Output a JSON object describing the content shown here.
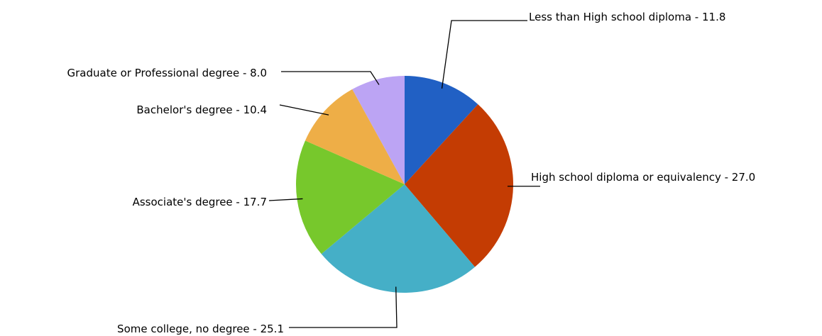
{
  "chart_data": {
    "type": "pie",
    "title": "",
    "legend": "none",
    "slices": [
      {
        "label": "Less than High school diploma",
        "value": 11.8,
        "color": "#2160C4",
        "display": "Less than High school diploma - 11.8"
      },
      {
        "label": "High school diploma or equivalency",
        "value": 27.0,
        "color": "#C43C03",
        "display": "High school diploma or equivalency - 27.0"
      },
      {
        "label": "Some college, no degree",
        "value": 25.1,
        "color": "#45AFC7",
        "display": "Some college, no degree - 25.1"
      },
      {
        "label": "Associate's degree",
        "value": 17.7,
        "color": "#77C82C",
        "display": "Associate's degree - 17.7"
      },
      {
        "label": "Bachelor's degree",
        "value": 10.4,
        "color": "#EEAE47",
        "display": "Bachelor's degree - 10.4"
      },
      {
        "label": "Graduate or Professional degree",
        "value": 8.0,
        "color": "#BCA4F4",
        "display": "Graduate or Professional degree - 8.0"
      }
    ]
  }
}
